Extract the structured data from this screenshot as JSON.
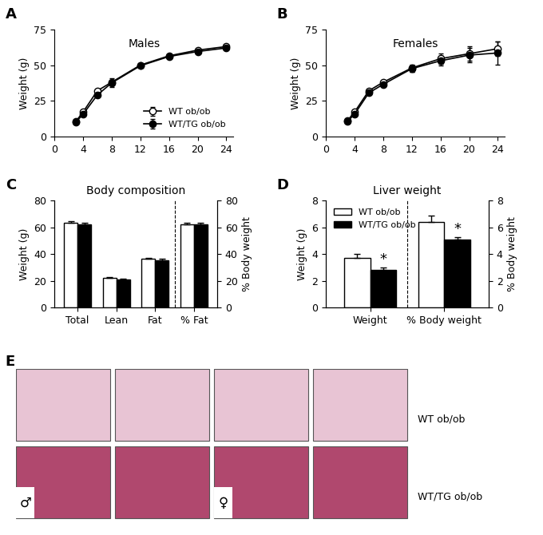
{
  "chart_data": [
    {
      "type": "line",
      "panel": "A",
      "title": "Males",
      "y_label": "Weight (g)",
      "x": [
        3,
        4,
        6,
        8,
        12,
        16,
        20,
        24
      ],
      "xlim": [
        0,
        25
      ],
      "xticks": [
        0,
        4,
        8,
        12,
        16,
        20,
        24
      ],
      "ylim": [
        0,
        75
      ],
      "yticks": [
        0,
        25,
        50,
        75
      ],
      "legend": "lower right",
      "series": [
        {
          "name": "WT ob/ob",
          "color": "#000000",
          "marker": "open",
          "values": [
            10.5,
            17,
            32,
            38,
            50,
            56.5,
            60.5,
            63
          ],
          "errors": [
            0.5,
            0.6,
            0.8,
            1.0,
            1.0,
            1.0,
            1.0,
            1.0
          ]
        },
        {
          "name": "WT/TG ob/ob",
          "color": "#000000",
          "marker": "filled",
          "values": [
            10,
            15.5,
            29,
            37.5,
            49.5,
            56,
            59.5,
            62
          ],
          "errors": [
            0.5,
            0.6,
            0.8,
            3.0,
            1.0,
            1.0,
            1.0,
            1.0
          ]
        }
      ]
    },
    {
      "type": "line",
      "panel": "B",
      "title": "Females",
      "y_label": "Weight (g)",
      "x": [
        3,
        4,
        6,
        8,
        12,
        16,
        20,
        24
      ],
      "xlim": [
        0,
        25
      ],
      "xticks": [
        0,
        4,
        8,
        12,
        16,
        20,
        24
      ],
      "ylim": [
        0,
        75
      ],
      "yticks": [
        0,
        25,
        50,
        75
      ],
      "series": [
        {
          "name": "WT ob/ob",
          "color": "#000000",
          "marker": "open",
          "values": [
            11,
            17,
            32,
            38,
            48,
            54.5,
            58,
            61.5
          ],
          "errors": [
            0.5,
            0.6,
            0.8,
            1.0,
            2.5,
            3.5,
            5.0,
            5.0
          ]
        },
        {
          "name": "WT/TG ob/ob",
          "color": "#000000",
          "marker": "filled",
          "values": [
            10.5,
            15.5,
            30.5,
            36.5,
            47.5,
            53,
            57,
            58.5
          ],
          "errors": [
            0.5,
            0.6,
            0.8,
            1.0,
            2.5,
            3.5,
            5.0,
            8.0
          ]
        }
      ]
    },
    {
      "type": "bar",
      "panel": "C",
      "title": "Body composition",
      "y_label": "Weight (g)",
      "y2_label": "% Body weight",
      "categories": [
        "Total",
        "Lean",
        "Fat",
        "% Fat"
      ],
      "ylim": [
        0,
        80
      ],
      "yticks": [
        0,
        20,
        40,
        60,
        80
      ],
      "y2lim": [
        0,
        80
      ],
      "y2ticks": [
        0,
        20,
        40,
        60,
        80
      ],
      "series": [
        {
          "name": "WT ob/ob",
          "color": "#ffffff",
          "values": [
            63.5,
            22,
            36.5,
            null
          ],
          "errors": [
            1.0,
            0.6,
            0.6,
            null
          ]
        },
        {
          "name": "WT/TG ob/ob",
          "color": "#000000",
          "values": [
            62,
            21,
            35.5,
            null
          ],
          "errors": [
            1.2,
            0.8,
            0.8,
            null
          ]
        },
        {
          "name": "WT ob/ob",
          "color": "#ffffff",
          "axis": "y2",
          "values": [
            null,
            null,
            null,
            62.5
          ],
          "errors": [
            null,
            null,
            null,
            0.8
          ]
        },
        {
          "name": "WT/TG ob/ob",
          "color": "#000000",
          "axis": "y2",
          "values": [
            null,
            null,
            null,
            62.5
          ],
          "errors": [
            null,
            null,
            null,
            0.8
          ]
        }
      ]
    },
    {
      "type": "bar",
      "panel": "D",
      "title": "Liver weight",
      "y_label": "Weight (g)",
      "y2_label": "% Body weight",
      "categories": [
        "Weight",
        "% Body weight"
      ],
      "ylim": [
        0,
        8
      ],
      "yticks": [
        0,
        2,
        4,
        6,
        8
      ],
      "y2lim": [
        0,
        8
      ],
      "y2ticks": [
        0,
        2,
        4,
        6,
        8
      ],
      "legend": "upper left",
      "series": [
        {
          "name": "WT ob/ob",
          "color": "#ffffff",
          "values": [
            3.7,
            null
          ],
          "errors": [
            0.3,
            null
          ]
        },
        {
          "name": "WT/TG ob/ob",
          "color": "#000000",
          "values": [
            2.8,
            null
          ],
          "errors": [
            0.2,
            null
          ]
        },
        {
          "name": "WT ob/ob",
          "color": "#ffffff",
          "axis": "y2",
          "values": [
            null,
            6.4
          ],
          "errors": [
            null,
            0.5
          ]
        },
        {
          "name": "WT/TG ob/ob",
          "color": "#000000",
          "axis": "y2",
          "values": [
            null,
            5.1
          ],
          "errors": [
            null,
            0.15
          ]
        }
      ],
      "annotations": [
        {
          "text": "*",
          "category": "Weight",
          "series": "WT/TG ob/ob"
        },
        {
          "text": "*",
          "category": "% Body weight",
          "series": "WT/TG ob/ob"
        }
      ]
    }
  ],
  "image_panel": {
    "panel": "E",
    "rows": [
      {
        "label": "WT ob/ob",
        "images": 4
      },
      {
        "label": "WT/TG ob/ob",
        "images": 4
      }
    ],
    "symbols": [
      {
        "text": "♂",
        "row": 1,
        "image": 0
      },
      {
        "text": "♀",
        "row": 1,
        "image": 2
      }
    ]
  }
}
